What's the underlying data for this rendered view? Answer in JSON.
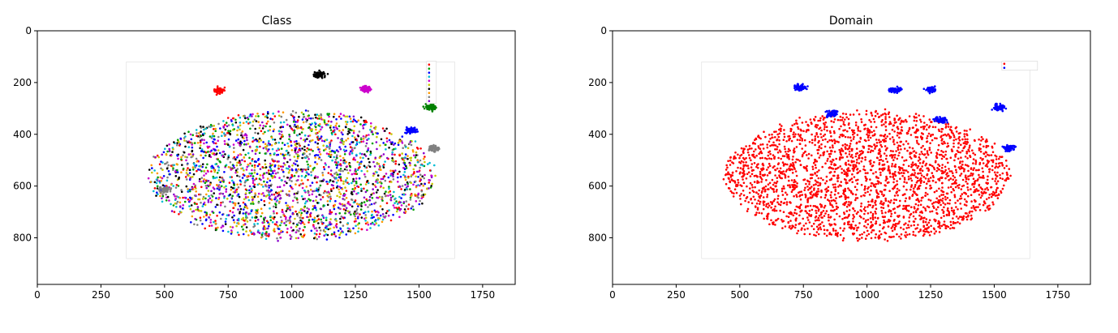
{
  "chart_data": [
    {
      "type": "scatter",
      "title": "Class",
      "xlabel": "",
      "ylabel": "",
      "xlim": [
        0,
        1878
      ],
      "ylim": [
        980,
        0
      ],
      "y_inverted": true,
      "xticks": [
        "0",
        "250",
        "500",
        "750",
        "1000",
        "1250",
        "1500",
        "1750"
      ],
      "yticks": [
        "0",
        "200",
        "400",
        "600",
        "800"
      ],
      "grid": false,
      "content": "image of a t-SNE scatter plot colored by class",
      "embedded_image_extent": {
        "x": [
          240,
          1670
        ],
        "y": [
          110,
          900
        ]
      },
      "colors": [
        "#ff0000",
        "#00a000",
        "#0000ff",
        "#00bcd4",
        "#cc00cc",
        "#c8c800",
        "#000000",
        "#ff9900",
        "#808080",
        "#8800cc"
      ],
      "legend_placement": "top-right",
      "clusters": [
        {
          "label": "red",
          "color": "#ff0000",
          "x": 715,
          "y": 230
        },
        {
          "label": "black",
          "color": "#000000",
          "x": 1110,
          "y": 170
        },
        {
          "label": "magenta",
          "color": "#cc00cc",
          "x": 1290,
          "y": 225
        },
        {
          "label": "green",
          "color": "#008000",
          "x": 1545,
          "y": 295
        },
        {
          "label": "gray",
          "color": "#808080",
          "x": 1560,
          "y": 455
        },
        {
          "label": "gray",
          "color": "#808080",
          "x": 500,
          "y": 615
        },
        {
          "label": "blue",
          "color": "#0000ff",
          "x": 1470,
          "y": 385
        }
      ]
    },
    {
      "type": "scatter",
      "title": "Domain",
      "xlabel": "",
      "ylabel": "",
      "xlim": [
        0,
        1878
      ],
      "ylim": [
        980,
        0
      ],
      "y_inverted": true,
      "xticks": [
        "0",
        "250",
        "500",
        "750",
        "1000",
        "1250",
        "1500",
        "1750"
      ],
      "yticks": [
        "0",
        "200",
        "400",
        "600",
        "800"
      ],
      "grid": false,
      "content": "image of a t-SNE scatter plot colored by domain",
      "embedded_image_extent": {
        "x": [
          240,
          1670
        ],
        "y": [
          110,
          900
        ]
      },
      "series": [
        {
          "color": "#ff0000"
        },
        {
          "color": "#0000ff"
        }
      ],
      "legend_placement": "top-right"
    }
  ]
}
